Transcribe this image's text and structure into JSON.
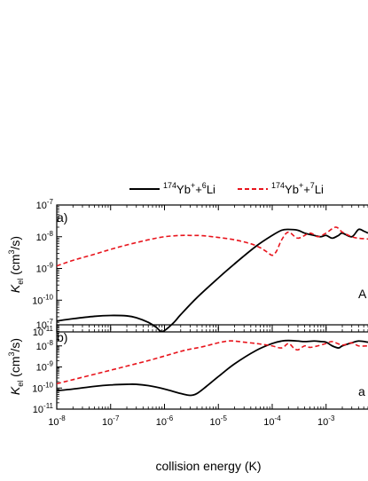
{
  "chart_data": [
    {
      "type": "line",
      "panel_label": "a)",
      "corner_label": "A",
      "xscale": "log",
      "yscale": "log",
      "xlim": [
        1e-08,
        0.006
      ],
      "ylim": [
        1e-11,
        1e-07
      ],
      "ylabel": "K_el (cm^3/s)",
      "ylabel_parts": {
        "main": "K",
        "sub": "el",
        "rest_pre": " (cm",
        "sup": "3",
        "rest_post": "/s)"
      },
      "y_ticks": [
        {
          "value": 1e-07,
          "base": "10",
          "exp": "-7"
        },
        {
          "value": 1e-08,
          "base": "10",
          "exp": "-8"
        },
        {
          "value": 1e-09,
          "base": "10",
          "exp": "-9"
        },
        {
          "value": 1e-10,
          "base": "10",
          "exp": "-10"
        },
        {
          "value": 1e-11,
          "base": "10",
          "exp": "-11"
        }
      ],
      "series": [
        {
          "key": "li6",
          "color": "#000000",
          "dash": "solid",
          "x": [
            1e-08,
            2e-08,
            5e-08,
            1e-07,
            2e-07,
            3e-07,
            5e-07,
            7e-07,
            8.5e-07,
            1e-06,
            1.5e-06,
            2e-06,
            4e-06,
            1e-05,
            2e-05,
            5e-05,
            0.0001,
            0.00015,
            0.0002,
            0.0003,
            0.0004,
            0.0006,
            0.0008,
            0.001,
            0.0013,
            0.0017,
            0.002,
            0.003,
            0.004,
            0.005,
            0.006
          ],
          "y": [
            2.2e-11,
            2.6e-11,
            3.1e-11,
            3.3e-11,
            3.2e-11,
            2.8e-11,
            2e-11,
            1.4e-11,
            1.05e-11,
            1.1e-11,
            2e-11,
            3.5e-11,
            1.2e-10,
            5e-10,
            1.4e-09,
            5e-09,
            1.1e-08,
            1.6e-08,
            1.7e-08,
            1.6e-08,
            1.3e-08,
            1.1e-08,
            1e-08,
            1.1e-08,
            9e-09,
            1.1e-08,
            1.3e-08,
            1e-08,
            1.7e-08,
            1.5e-08,
            1.3e-08
          ]
        },
        {
          "key": "li7",
          "color": "#e8141c",
          "dash": "dashed",
          "x": [
            1e-08,
            2e-08,
            5e-08,
            1e-07,
            2e-07,
            5e-07,
            1e-06,
            2e-06,
            3e-06,
            5e-06,
            1e-05,
            2e-05,
            4e-05,
            6e-05,
            8e-05,
            0.0001,
            0.00012,
            0.00015,
            0.0002,
            0.0003,
            0.0005,
            0.0007,
            0.001,
            0.0015,
            0.002,
            0.003,
            0.004,
            0.006
          ],
          "y": [
            1.2e-09,
            1.8e-09,
            2.8e-09,
            4e-09,
            5.5e-09,
            8e-09,
            1e-08,
            1.1e-08,
            1.1e-08,
            1.08e-08,
            9.5e-09,
            8e-09,
            6e-09,
            4.5e-09,
            3.3e-09,
            2.6e-09,
            3.5e-09,
            8e-09,
            1.4e-08,
            9e-09,
            1.3e-08,
            1e-08,
            1.3e-08,
            2e-08,
            1.4e-08,
            1e-08,
            9e-09,
            8.5e-09
          ]
        }
      ]
    },
    {
      "type": "line",
      "panel_label": "b)",
      "corner_label": "a",
      "xscale": "log",
      "yscale": "log",
      "xlim": [
        1e-08,
        0.006
      ],
      "ylim": [
        1e-11,
        1e-07
      ],
      "xlabel": "collision energy (K)",
      "ylabel": "K_el (cm^3/s)",
      "ylabel_parts": {
        "main": "K",
        "sub": "el",
        "rest_pre": " (cm",
        "sup": "3",
        "rest_post": "/s)"
      },
      "y_ticks": [
        {
          "value": 1e-07,
          "base": "10",
          "exp": "-7"
        },
        {
          "value": 1e-08,
          "base": "10",
          "exp": "-8"
        },
        {
          "value": 1e-09,
          "base": "10",
          "exp": "-9"
        },
        {
          "value": 1e-10,
          "base": "10",
          "exp": "-10"
        },
        {
          "value": 1e-11,
          "base": "10",
          "exp": "-11"
        }
      ],
      "x_ticks": [
        {
          "value": 1e-08,
          "base": "10",
          "exp": "-8"
        },
        {
          "value": 1e-07,
          "base": "10",
          "exp": "-7"
        },
        {
          "value": 1e-06,
          "base": "10",
          "exp": "-6"
        },
        {
          "value": 1e-05,
          "base": "10",
          "exp": "-5"
        },
        {
          "value": 0.0001,
          "base": "10",
          "exp": "-4"
        },
        {
          "value": 0.001,
          "base": "10",
          "exp": "-3"
        }
      ],
      "series": [
        {
          "key": "li6",
          "color": "#000000",
          "dash": "solid",
          "x": [
            1e-08,
            2e-08,
            5e-08,
            1e-07,
            2e-07,
            3e-07,
            5e-07,
            1e-06,
            2e-06,
            3e-06,
            4e-06,
            6e-06,
            1e-05,
            2e-05,
            5e-05,
            0.0001,
            0.00015,
            0.0002,
            0.0003,
            0.0004,
            0.0006,
            0.0008,
            0.001,
            0.0013,
            0.0017,
            0.002,
            0.003,
            0.004,
            0.006
          ],
          "y": [
            7.5e-11,
            9e-11,
            1.2e-10,
            1.4e-10,
            1.5e-10,
            1.5e-10,
            1.3e-10,
            9e-11,
            5.5e-11,
            4.5e-11,
            5.5e-11,
            1.2e-10,
            3.5e-10,
            1.4e-09,
            6e-09,
            1.3e-08,
            1.7e-08,
            1.8e-08,
            1.7e-08,
            1.6e-08,
            1.7e-08,
            1.6e-08,
            1.5e-08,
            1e-08,
            8e-09,
            1e-08,
            1.4e-08,
            1.7e-08,
            1.5e-08
          ]
        },
        {
          "key": "li7",
          "color": "#e8141c",
          "dash": "dashed",
          "x": [
            1e-08,
            2e-08,
            5e-08,
            1e-07,
            2e-07,
            5e-07,
            1e-06,
            2e-06,
            3e-06,
            5e-06,
            1e-05,
            1.5e-05,
            2e-05,
            3e-05,
            5e-05,
            8e-05,
            0.0001,
            0.00015,
            0.0002,
            0.00025,
            0.0003,
            0.0004,
            0.0005,
            0.0007,
            0.001,
            0.0013,
            0.002,
            0.003,
            0.004,
            0.006
          ],
          "y": [
            1.6e-10,
            2.5e-10,
            4.5e-10,
            7e-10,
            1.1e-09,
            2e-09,
            3.3e-09,
            5.5e-09,
            7e-09,
            9e-09,
            1.4e-08,
            1.7e-08,
            1.7e-08,
            1.5e-08,
            1.3e-08,
            1.1e-08,
            1e-08,
            8e-09,
            1.3e-08,
            8e-09,
            6.5e-09,
            1e-08,
            8.5e-09,
            1e-08,
            1.3e-08,
            1.6e-08,
            1.1e-08,
            1.4e-08,
            1e-08,
            1e-08
          ]
        }
      ]
    }
  ],
  "legend": {
    "placement": "top",
    "entries": [
      {
        "key": "li6",
        "sup1": "174",
        "mid1": "Yb",
        "sup2": "+",
        "mid2": "+",
        "sup3": "6",
        "tail": "Li"
      },
      {
        "key": "li7",
        "sup1": "174",
        "mid1": "Yb",
        "sup2": "+",
        "mid2": "+",
        "sup3": "7",
        "tail": "Li"
      }
    ]
  }
}
